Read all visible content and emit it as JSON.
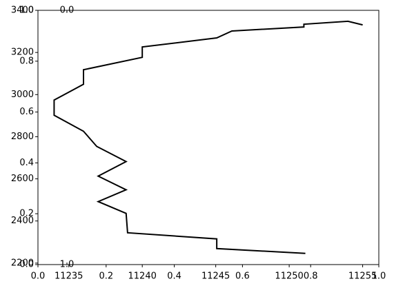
{
  "chart_data": [
    {
      "type": "line",
      "color": "#000000",
      "x": [
        11251.1,
        11245.07,
        11245.07,
        11239.0,
        11238.9,
        11237.0,
        11238.9,
        11237.0,
        11238.9,
        11236.9,
        11236.0,
        11234.0,
        11234.0,
        11236.0,
        11236.0,
        11240.0,
        11240.0,
        11245.07,
        11246.1,
        11251.0,
        11251.0,
        11254.0,
        11255.0
      ],
      "values": [
        2246,
        2269,
        2315,
        2344,
        2436,
        2492,
        2548,
        2613,
        2682,
        2754,
        2826,
        2902,
        2974,
        3049,
        3118,
        3177,
        3226,
        3269,
        3302,
        3321,
        3334,
        3348,
        3331
      ],
      "xlim": [
        11232.9,
        11256.1
      ],
      "xticks": [
        11235,
        11240,
        11245,
        11250,
        11255
      ],
      "ylim": [
        2193,
        3400
      ],
      "yticks": [
        2200,
        2400,
        2600,
        2800,
        3000,
        3200,
        3400
      ]
    },
    {
      "type": "empty",
      "xlim": [
        0,
        1
      ],
      "xticks": [
        {
          "value": 0,
          "label": "0.0"
        },
        {
          "value": 0.2,
          "label": "0.2"
        },
        {
          "value": 0.4,
          "label": "0.4"
        },
        {
          "value": 0.6,
          "label": "0.6"
        },
        {
          "value": 0.8,
          "label": "0.8"
        },
        {
          "value": 1,
          "label": "1.0"
        }
      ],
      "ylim": [
        0,
        1
      ],
      "yticks": [
        {
          "value": 0,
          "label": "0.0"
        },
        {
          "value": 0.2,
          "label": "0.2"
        },
        {
          "value": 0.4,
          "label": "0.4"
        },
        {
          "value": 0.6,
          "label": "0.6"
        },
        {
          "value": 0.8,
          "label": "0.8"
        },
        {
          "value": 1,
          "label": "1.0"
        }
      ]
    },
    {
      "type": "inner-axis",
      "ylim": [
        0,
        1
      ],
      "inverted": true,
      "yticks": [
        {
          "value": 0,
          "label": "0.0"
        },
        {
          "value": 1,
          "label": "1.0"
        }
      ]
    }
  ]
}
